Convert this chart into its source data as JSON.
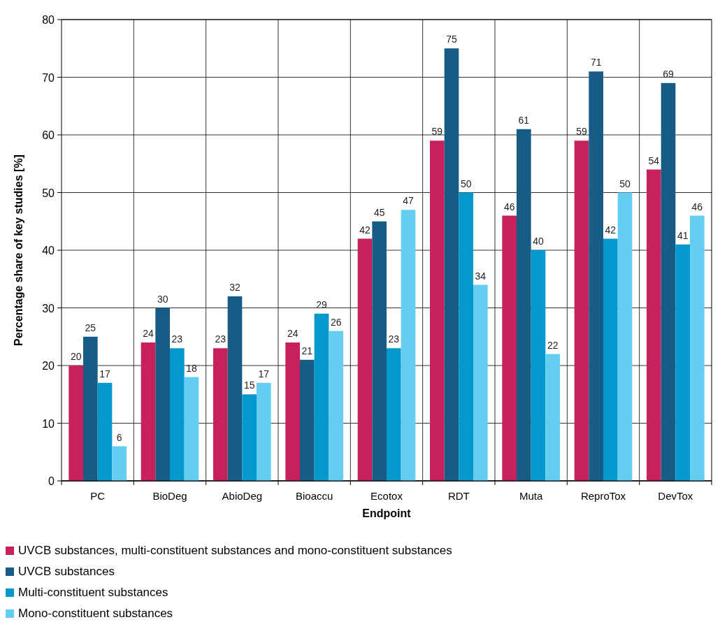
{
  "chart_data": {
    "type": "bar",
    "xlabel": "Endpoint",
    "ylabel": "Percentage share of key studies [%]",
    "categories": [
      "PC",
      "BioDeg",
      "AbioDeg",
      "Bioaccu",
      "Ecotox",
      "RDT",
      "Muta",
      "ReproTox",
      "DevTox"
    ],
    "series": [
      {
        "name": "UVCB substances, multi-constituent substances and mono-constituent substances",
        "color": "#c8205c",
        "values": [
          20,
          24,
          23,
          24,
          42,
          59,
          46,
          59,
          54
        ]
      },
      {
        "name": "UVCB substances",
        "color": "#175c84",
        "values": [
          25,
          30,
          32,
          21,
          45,
          75,
          61,
          71,
          69
        ]
      },
      {
        "name": "Multi-constituent substances",
        "color": "#0598cc",
        "values": [
          17,
          23,
          15,
          29,
          23,
          50,
          40,
          42,
          41
        ]
      },
      {
        "name": "Mono-constituent substances",
        "color": "#66cdf2",
        "values": [
          6,
          18,
          17,
          26,
          47,
          34,
          22,
          50,
          46
        ]
      }
    ],
    "ylim": [
      0,
      80
    ],
    "yticks": [
      0,
      10,
      20,
      30,
      40,
      50,
      60,
      70,
      80
    ],
    "grid": true,
    "legend": "bottom",
    "data_labels": true
  }
}
